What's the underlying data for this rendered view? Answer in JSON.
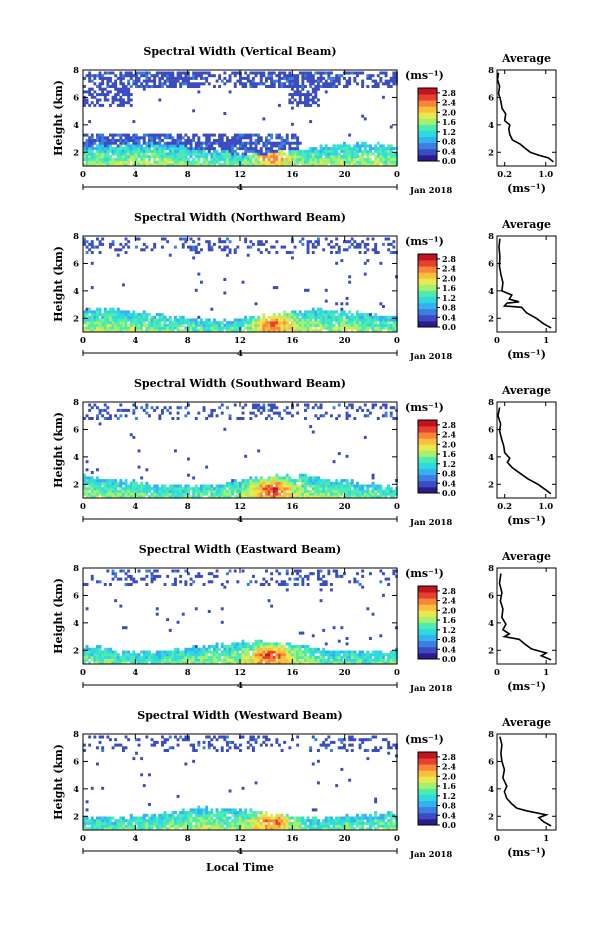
{
  "chart_data": [
    {
      "type": "heatmap",
      "title": "Spectral Width (Vertical Beam)",
      "ylabel": "Height (km)",
      "xticks": [
        "0",
        "4",
        "8",
        "12",
        "16",
        "20",
        "0"
      ],
      "yticks": [
        "2",
        "4",
        "6",
        "8"
      ],
      "xlim": [
        0,
        24
      ],
      "ylim": [
        1,
        8
      ],
      "date_label": "4",
      "date_suffix": "Jan 2018",
      "colorbar": {
        "unit": "(ms⁻¹)",
        "ticks": [
          "0.0",
          "0.4",
          "0.8",
          "1.2",
          "1.6",
          "2.0",
          "2.4",
          "2.8"
        ],
        "range": [
          0,
          3.0
        ]
      },
      "average": {
        "title": "Average",
        "xlabel": "(ms⁻¹)",
        "xticks": [
          "0.2",
          "1.0"
        ],
        "xlim": [
          0.05,
          1.2
        ],
        "ylim": [
          1,
          8
        ],
        "yticks": [
          "2",
          "4",
          "6",
          "8"
        ],
        "profile": [
          [
            1.15,
            1.3
          ],
          [
            1.05,
            1.6
          ],
          [
            0.85,
            1.8
          ],
          [
            0.7,
            2.0
          ],
          [
            0.6,
            2.3
          ],
          [
            0.5,
            2.6
          ],
          [
            0.35,
            2.9
          ],
          [
            0.3,
            3.3
          ],
          [
            0.28,
            3.7
          ],
          [
            0.3,
            4.0
          ],
          [
            0.2,
            4.3
          ],
          [
            0.22,
            4.8
          ],
          [
            0.15,
            5.2
          ],
          [
            0.12,
            5.8
          ],
          [
            0.08,
            6.3
          ],
          [
            0.1,
            6.8
          ],
          [
            0.06,
            7.3
          ],
          [
            0.08,
            7.8
          ]
        ]
      }
    },
    {
      "type": "heatmap",
      "title": "Spectral Width (Northward Beam)",
      "ylabel": "Height (km)",
      "xticks": [
        "0",
        "4",
        "8",
        "12",
        "16",
        "20",
        "0"
      ],
      "yticks": [
        "2",
        "4",
        "6",
        "8"
      ],
      "xlim": [
        0,
        24
      ],
      "ylim": [
        1,
        8
      ],
      "date_label": "4",
      "date_suffix": "Jan 2018",
      "colorbar": {
        "unit": "(ms⁻¹)",
        "ticks": [
          "0.0",
          "0.4",
          "0.8",
          "1.2",
          "1.6",
          "2.0",
          "2.4",
          "2.8"
        ],
        "range": [
          0,
          3.0
        ]
      },
      "average": {
        "title": "Average",
        "xlabel": "(ms⁻¹)",
        "xticks": [
          "0",
          "1"
        ],
        "xlim": [
          0,
          1.2
        ],
        "ylim": [
          1,
          8
        ],
        "yticks": [
          "2",
          "4",
          "6",
          "8"
        ],
        "profile": [
          [
            1.1,
            1.3
          ],
          [
            0.95,
            1.6
          ],
          [
            0.8,
            2.0
          ],
          [
            0.6,
            2.4
          ],
          [
            0.5,
            2.8
          ],
          [
            0.15,
            2.9
          ],
          [
            0.2,
            3.1
          ],
          [
            0.45,
            3.2
          ],
          [
            0.25,
            3.4
          ],
          [
            0.3,
            3.7
          ],
          [
            0.1,
            4.0
          ],
          [
            0.12,
            4.6
          ],
          [
            0.08,
            5.2
          ],
          [
            0.05,
            5.8
          ],
          [
            0.06,
            6.5
          ],
          [
            0.04,
            7.2
          ],
          [
            0.06,
            7.8
          ]
        ]
      }
    },
    {
      "type": "heatmap",
      "title": "Spectral Width (Southward Beam)",
      "ylabel": "Height (km)",
      "xticks": [
        "0",
        "4",
        "8",
        "12",
        "16",
        "20",
        "0"
      ],
      "yticks": [
        "2",
        "4",
        "6",
        "8"
      ],
      "xlim": [
        0,
        24
      ],
      "ylim": [
        1,
        8
      ],
      "date_label": "4",
      "date_suffix": "Jan 2018",
      "colorbar": {
        "unit": "(ms⁻¹)",
        "ticks": [
          "0.0",
          "0.4",
          "0.8",
          "1.2",
          "1.6",
          "2.0",
          "2.4",
          "2.8"
        ],
        "range": [
          0,
          3.0
        ]
      },
      "average": {
        "title": "Average",
        "xlabel": "(ms⁻¹)",
        "xticks": [
          "0.2",
          "1.0"
        ],
        "xlim": [
          0.05,
          1.2
        ],
        "ylim": [
          1,
          8
        ],
        "yticks": [
          "2",
          "4",
          "6",
          "8"
        ],
        "profile": [
          [
            1.1,
            1.3
          ],
          [
            1.0,
            1.6
          ],
          [
            0.85,
            2.0
          ],
          [
            0.65,
            2.4
          ],
          [
            0.5,
            2.8
          ],
          [
            0.35,
            3.2
          ],
          [
            0.25,
            3.6
          ],
          [
            0.3,
            3.9
          ],
          [
            0.2,
            4.3
          ],
          [
            0.18,
            4.8
          ],
          [
            0.14,
            5.3
          ],
          [
            0.1,
            5.9
          ],
          [
            0.12,
            6.4
          ],
          [
            0.07,
            7.0
          ],
          [
            0.1,
            7.6
          ]
        ]
      }
    },
    {
      "type": "heatmap",
      "title": "Spectral Width (Eastward Beam)",
      "ylabel": "Height (km)",
      "xticks": [
        "0",
        "4",
        "8",
        "12",
        "16",
        "20",
        "0"
      ],
      "yticks": [
        "2",
        "4",
        "6",
        "8"
      ],
      "xlim": [
        0,
        24
      ],
      "ylim": [
        1,
        8
      ],
      "date_label": "4",
      "date_suffix": "Jan 2018",
      "colorbar": {
        "unit": "(ms⁻¹)",
        "ticks": [
          "0.0",
          "0.4",
          "0.8",
          "1.2",
          "1.6",
          "2.0",
          "2.4",
          "2.8"
        ],
        "range": [
          0,
          3.0
        ]
      },
      "average": {
        "title": "Average",
        "xlabel": "(ms⁻¹)",
        "xticks": [
          "0",
          "1"
        ],
        "xlim": [
          0,
          1.2
        ],
        "ylim": [
          1,
          8
        ],
        "yticks": [
          "2",
          "4",
          "6",
          "8"
        ],
        "profile": [
          [
            1.1,
            1.3
          ],
          [
            0.9,
            1.6
          ],
          [
            1.0,
            1.8
          ],
          [
            0.7,
            2.1
          ],
          [
            0.55,
            2.5
          ],
          [
            0.45,
            2.8
          ],
          [
            0.15,
            3.0
          ],
          [
            0.25,
            3.2
          ],
          [
            0.12,
            3.5
          ],
          [
            0.18,
            3.9
          ],
          [
            0.1,
            4.4
          ],
          [
            0.12,
            5.0
          ],
          [
            0.07,
            5.6
          ],
          [
            0.1,
            6.2
          ],
          [
            0.05,
            6.9
          ],
          [
            0.08,
            7.6
          ]
        ]
      }
    },
    {
      "type": "heatmap",
      "title": "Spectral Width (Westward Beam)",
      "ylabel": "Height (km)",
      "xlabel": "Local Time",
      "xticks": [
        "0",
        "4",
        "8",
        "12",
        "16",
        "20",
        "0"
      ],
      "yticks": [
        "2",
        "4",
        "6",
        "8"
      ],
      "xlim": [
        0,
        24
      ],
      "ylim": [
        1,
        8
      ],
      "date_label": "4",
      "date_suffix": "Jan 2018",
      "colorbar": {
        "unit": "(ms⁻¹)",
        "ticks": [
          "0.0",
          "0.4",
          "0.8",
          "1.2",
          "1.6",
          "2.0",
          "2.4",
          "2.8"
        ],
        "range": [
          0,
          3.0
        ]
      },
      "average": {
        "title": "Average",
        "xlabel": "(ms⁻¹)",
        "xticks": [
          "0",
          "1"
        ],
        "xlim": [
          0,
          1.2
        ],
        "ylim": [
          1,
          8
        ],
        "yticks": [
          "2",
          "4",
          "6",
          "8"
        ],
        "profile": [
          [
            1.1,
            1.3
          ],
          [
            0.95,
            1.6
          ],
          [
            0.85,
            1.9
          ],
          [
            1.0,
            2.1
          ],
          [
            0.6,
            2.4
          ],
          [
            0.4,
            2.6
          ],
          [
            0.3,
            2.9
          ],
          [
            0.2,
            3.3
          ],
          [
            0.15,
            3.8
          ],
          [
            0.2,
            4.2
          ],
          [
            0.12,
            4.8
          ],
          [
            0.15,
            5.4
          ],
          [
            0.1,
            6.0
          ],
          [
            0.08,
            6.6
          ],
          [
            0.1,
            7.2
          ],
          [
            0.06,
            7.8
          ]
        ]
      }
    }
  ],
  "colors": {
    "colormap": [
      "#2b1b8f",
      "#3b4cc0",
      "#3d7fe0",
      "#35b1f0",
      "#2ed9e0",
      "#4cebb0",
      "#a6f070",
      "#e8e850",
      "#fbbf3c",
      "#f8853a",
      "#e84030",
      "#c0141e"
    ],
    "text": "#000000",
    "profile_line": "#000000"
  }
}
